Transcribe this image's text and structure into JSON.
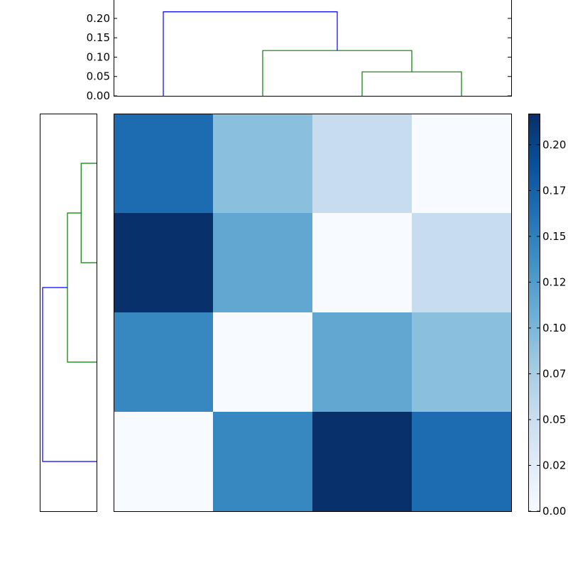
{
  "chart_data": [
    {
      "type": "heatmap",
      "title": "",
      "xlabel": "",
      "ylabel": "",
      "colormap": "Blues",
      "rows": [
        [
          0.167,
          0.092,
          0.052,
          0.0
        ],
        [
          0.217,
          0.115,
          0.0,
          0.052
        ],
        [
          0.145,
          0.0,
          0.115,
          0.092
        ],
        [
          0.0,
          0.145,
          0.217,
          0.167
        ]
      ],
      "colorbar": {
        "range": [
          0.0,
          0.217
        ],
        "tick_values": [
          0.0,
          0.025,
          0.05,
          0.075,
          0.1,
          0.125,
          0.15,
          0.175,
          0.2
        ],
        "tick_labels": [
          "0.00",
          "0.02",
          "0.05",
          "0.07",
          "0.10",
          "0.12",
          "0.15",
          "0.17",
          "0.20"
        ]
      }
    },
    {
      "type": "dendrogram",
      "orientation": "top",
      "title": "",
      "ylim": [
        0.0,
        0.22
      ],
      "tick_values": [
        0.0,
        0.05,
        0.1,
        0.15,
        0.2
      ],
      "tick_labels": [
        "0.00",
        "0.05",
        "0.10",
        "0.15",
        "0.20"
      ],
      "links": [
        {
          "left": 2,
          "right": 3,
          "height": 0.062,
          "color": "#008000"
        },
        {
          "left": 1,
          "right": 2.5,
          "height": 0.117,
          "color": "#008000"
        },
        {
          "left": 0,
          "right": 1.75,
          "height": 0.217,
          "color": "#0000ff"
        }
      ]
    },
    {
      "type": "dendrogram",
      "orientation": "left",
      "title": "",
      "links": [
        {
          "top": 0,
          "bottom": 1,
          "depth": 0.062,
          "color": "#008000"
        },
        {
          "top": 0.5,
          "bottom": 2,
          "depth": 0.117,
          "color": "#008000"
        },
        {
          "top": 1.25,
          "bottom": 3,
          "depth": 0.217,
          "color": "#0000ff"
        }
      ]
    }
  ]
}
